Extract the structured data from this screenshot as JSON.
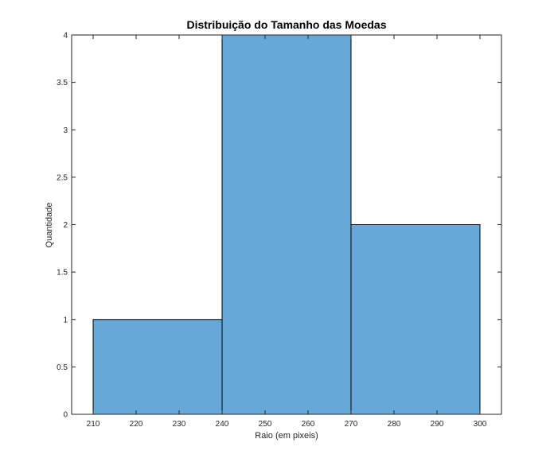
{
  "chart_data": {
    "type": "bar",
    "title": "Distribuição do Tamanho das Moedas",
    "xlabel": "Raio (em pixeis)",
    "ylabel": "Quantidade",
    "bins": [
      {
        "from": 210,
        "to": 240,
        "count": 1
      },
      {
        "from": 240,
        "to": 270,
        "count": 4
      },
      {
        "from": 270,
        "to": 300,
        "count": 2
      }
    ],
    "xlim": [
      205,
      305
    ],
    "ylim": [
      0,
      4
    ],
    "xticks": [
      210,
      220,
      230,
      240,
      250,
      260,
      270,
      280,
      290,
      300
    ],
    "xtick_labels": [
      "210",
      "220",
      "230",
      "240",
      "250",
      "260",
      "270",
      "280",
      "290",
      "300"
    ],
    "yticks": [
      0,
      0.5,
      1,
      1.5,
      2,
      2.5,
      3,
      3.5,
      4
    ],
    "ytick_labels": [
      "0",
      "0.5",
      "1",
      "1.5",
      "2",
      "2.5",
      "3",
      "3.5",
      "4"
    ],
    "grid": false,
    "bar_color": "#66a8d8",
    "bar_edge_color": "#000000"
  }
}
